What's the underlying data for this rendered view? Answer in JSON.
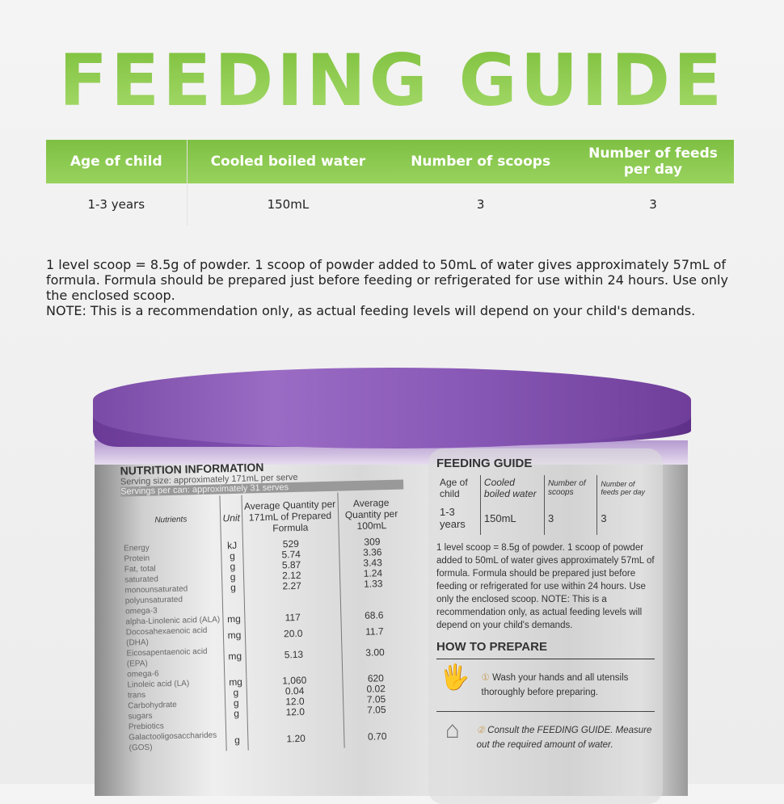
{
  "title": "FEEDING GUIDE",
  "guide_table": {
    "headers": [
      "Age of child",
      "Cooled boiled water",
      "Number of scoops",
      "Number of feeds per day"
    ],
    "row": [
      "1-3 years",
      "150mL",
      "3",
      "3"
    ]
  },
  "notes": [
    "1 level scoop = 8.5g of powder. 1 scoop of powder added to 50mL of water gives approximately 57mL of formula. Formula should be prepared just before feeding or refrigerated for use within 24 hours. Use only the enclosed scoop.",
    "NOTE: This is a recommendation only, as actual feeding levels will depend on your child's demands."
  ],
  "colors": {
    "accent_green": "#8cc84b",
    "lid_purple": "#8a5ab8"
  },
  "can": {
    "nutrition": {
      "title": "NUTRITION INFORMATION",
      "serving_size": "Serving size: approximately 171mL per serve",
      "servings": "Servings per can: approximately 31 serves",
      "headers": [
        "Nutrients",
        "Unit",
        "Average Quantity per 171mL of Prepared Formula",
        "Average Quantity per 100mL"
      ],
      "rows": [
        [
          "Energy",
          "kJ",
          "529",
          "309"
        ],
        [
          "Protein",
          "g",
          "5.74",
          "3.36"
        ],
        [
          "Fat, total",
          "g",
          "5.87",
          "3.43"
        ],
        [
          "saturated",
          "g",
          "2.12",
          "1.24"
        ],
        [
          "monounsaturated",
          "g",
          "2.27",
          "1.33"
        ],
        [
          "polyunsaturated",
          "",
          "",
          ""
        ],
        [
          "omega-3",
          "",
          "",
          ""
        ],
        [
          "alpha-Linolenic acid (ALA)",
          "mg",
          "117",
          "68.6"
        ],
        [
          "Docosahexaenoic acid (DHA)",
          "mg",
          "20.0",
          "11.7"
        ],
        [
          "Eicosapentaenoic acid (EPA)",
          "mg",
          "5.13",
          "3.00"
        ],
        [
          "omega-6",
          "",
          "",
          ""
        ],
        [
          "Linoleic acid (LA)",
          "mg",
          "1,060",
          "620"
        ],
        [
          "trans",
          "g",
          "0.04",
          "0.02"
        ],
        [
          "Carbohydrate",
          "g",
          "12.0",
          "7.05"
        ],
        [
          "sugars",
          "g",
          "12.0",
          "7.05"
        ],
        [
          "Prebiotics",
          "",
          "",
          ""
        ],
        [
          "Galactooligosaccharides (GOS)",
          "g",
          "1.20",
          "0.70"
        ]
      ]
    },
    "feeding_guide": {
      "title": "FEEDING GUIDE",
      "headers": [
        "Age of child",
        "Cooled boiled water",
        "Number of scoops",
        "Number of feeds per day"
      ],
      "row": [
        "1-3 years",
        "150mL",
        "3",
        "3"
      ],
      "text": "1 level scoop = 8.5g of powder. 1 scoop of powder added to 50mL of water gives approximately 57mL of formula. Formula should be prepared just before feeding or refrigerated for use within 24 hours. Use only the enclosed scoop. NOTE: This is a recommendation only, as actual feeding levels will depend on your child's demands.",
      "prepare_title": "HOW TO PREPARE",
      "steps": [
        {
          "num": "①",
          "text": "Wash your hands and all utensils thoroughly before preparing."
        },
        {
          "num": "②",
          "text": "Consult the FEEDING GUIDE. Measure out the required amount of water."
        }
      ]
    }
  }
}
